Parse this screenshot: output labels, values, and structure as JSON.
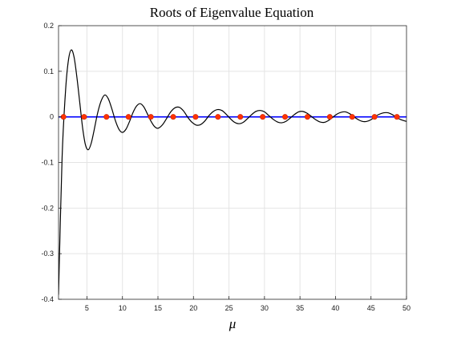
{
  "chart_data": {
    "type": "line",
    "title": "Roots of Eigenvalue Equation",
    "xlabel": "μ",
    "ylabel": "",
    "xlim": [
      1,
      50
    ],
    "ylim": [
      -0.4,
      0.2
    ],
    "xticks": [
      5,
      10,
      15,
      20,
      25,
      30,
      35,
      40,
      45,
      50
    ],
    "yticks": [
      0.2,
      0.1,
      0,
      -0.1,
      -0.2,
      -0.3,
      -0.4
    ],
    "grid": true,
    "colors": {
      "curve": "#000000",
      "zero_line": "#0000ff",
      "roots": "#ff3300",
      "root_edge": "#cc2200"
    },
    "series": [
      {
        "kind": "curve",
        "x": [
          1.0,
          1.5,
          2.0,
          2.4,
          2.8,
          3.2,
          3.6,
          4.0,
          4.4,
          4.8,
          5.2,
          5.6,
          6.0,
          6.5,
          7.0,
          7.5,
          8.0,
          8.5,
          9.0,
          9.5,
          10.0,
          10.5,
          11.0,
          11.5,
          12.0,
          12.5,
          13.0,
          13.5,
          14.0,
          14.5,
          15.0,
          15.6,
          16.2,
          16.8,
          17.4,
          18.0,
          18.6,
          19.2,
          19.8,
          20.4,
          21.0,
          21.6,
          22.2,
          22.8,
          23.4,
          24.0,
          24.6,
          25.2,
          25.8,
          26.4,
          27.0,
          27.6,
          28.2,
          28.8,
          29.4,
          30.0,
          30.6,
          31.2,
          31.8,
          32.4,
          33.0,
          33.6,
          34.2,
          34.8,
          35.4,
          36.0,
          36.6,
          37.2,
          37.8,
          38.4,
          39.0,
          39.6,
          40.2,
          40.8,
          41.4,
          42.0,
          42.6,
          43.2,
          43.8,
          44.4,
          45.0,
          45.6,
          46.2,
          46.8,
          47.4,
          48.0,
          48.6,
          49.2,
          49.8,
          50.0
        ],
        "y": [
          -0.39,
          -0.09,
          0.06,
          0.125,
          0.147,
          0.13,
          0.085,
          0.03,
          -0.025,
          -0.062,
          -0.072,
          -0.058,
          -0.03,
          0.008,
          0.035,
          0.048,
          0.04,
          0.018,
          -0.008,
          -0.027,
          -0.034,
          -0.027,
          -0.01,
          0.01,
          0.024,
          0.029,
          0.022,
          0.007,
          -0.009,
          -0.021,
          -0.025,
          -0.018,
          -0.004,
          0.011,
          0.02,
          0.021,
          0.013,
          -0.001,
          -0.012,
          -0.018,
          -0.017,
          -0.009,
          0.003,
          0.012,
          0.016,
          0.014,
          0.006,
          -0.004,
          -0.012,
          -0.015,
          -0.012,
          -0.004,
          0.005,
          0.012,
          0.014,
          0.011,
          0.003,
          -0.005,
          -0.011,
          -0.013,
          -0.01,
          -0.003,
          0.005,
          0.011,
          0.012,
          0.008,
          0.001,
          -0.006,
          -0.011,
          -0.012,
          -0.008,
          -0.001,
          0.006,
          0.01,
          0.011,
          0.007,
          0.0,
          -0.006,
          -0.01,
          -0.01,
          -0.006,
          0.001,
          0.006,
          0.009,
          0.009,
          0.005,
          -0.001,
          -0.006,
          -0.009,
          -0.01
        ]
      },
      {
        "kind": "zero_line",
        "x": [
          1,
          50
        ],
        "y": [
          0,
          0
        ]
      },
      {
        "kind": "roots",
        "x": [
          1.7,
          4.6,
          7.75,
          10.85,
          14.0,
          17.15,
          20.3,
          23.45,
          26.6,
          29.75,
          32.9,
          36.05,
          39.2,
          42.35,
          45.5,
          48.65
        ],
        "y": [
          0,
          0,
          0,
          0,
          0,
          0,
          0,
          0,
          0,
          0,
          0,
          0,
          0,
          0,
          0,
          0
        ]
      }
    ]
  }
}
